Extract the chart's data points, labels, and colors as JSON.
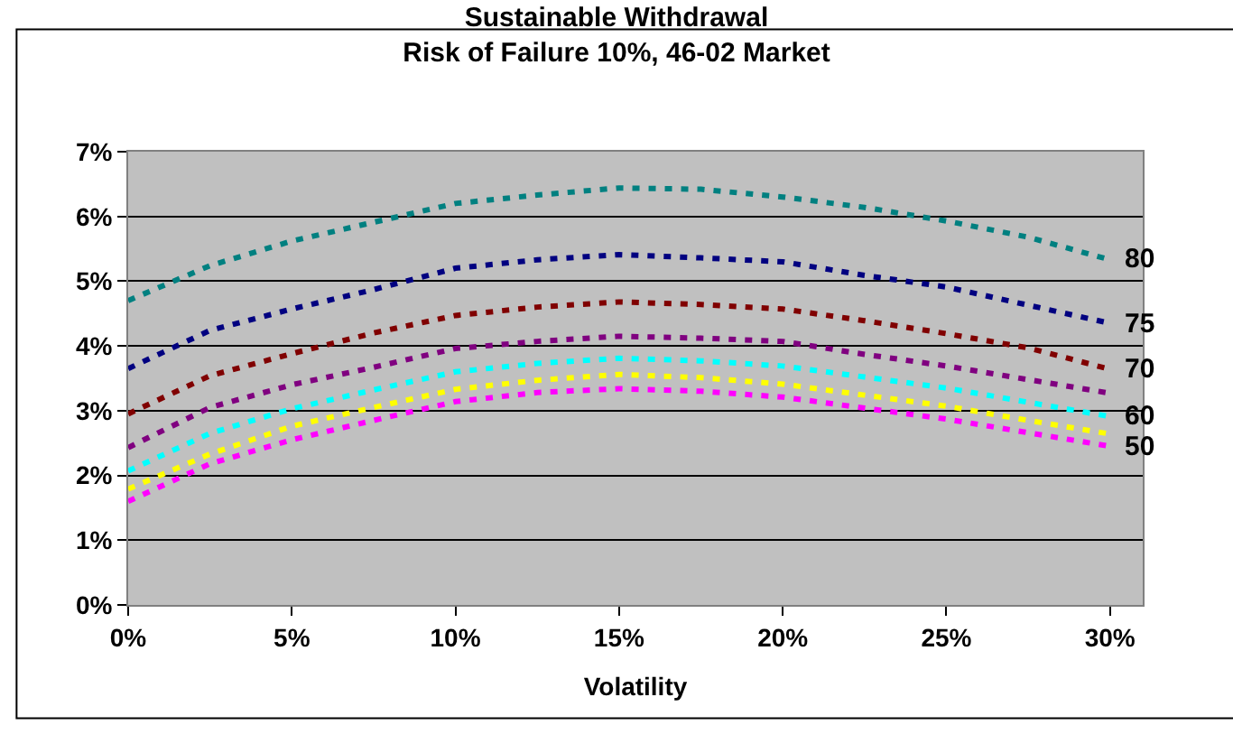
{
  "chart_data": {
    "type": "line",
    "title": "Sustainable Withdrawal\nRisk of Failure 10%, 46-02 Market",
    "xlabel": "Volatility",
    "x": [
      0,
      2.5,
      5,
      7.5,
      10,
      12.5,
      15,
      17.5,
      20,
      22.5,
      25,
      27.5,
      30
    ],
    "series": [
      {
        "name": "80",
        "color": "#008080",
        "values": [
          4.7,
          5.24,
          5.62,
          5.91,
          6.2,
          6.33,
          6.44,
          6.42,
          6.3,
          6.14,
          5.93,
          5.68,
          5.33
        ]
      },
      {
        "name": "75",
        "color": "#000080",
        "values": [
          3.65,
          4.24,
          4.57,
          4.87,
          5.2,
          5.33,
          5.41,
          5.36,
          5.3,
          5.09,
          4.91,
          4.63,
          4.35
        ]
      },
      {
        "name": "70",
        "color": "#800000",
        "values": [
          2.95,
          3.54,
          3.88,
          4.2,
          4.47,
          4.6,
          4.68,
          4.64,
          4.57,
          4.39,
          4.19,
          3.97,
          3.64
        ]
      },
      {
        "color": "#800080",
        "values": [
          2.43,
          3.05,
          3.4,
          3.67,
          3.96,
          4.07,
          4.15,
          4.12,
          4.07,
          3.87,
          3.69,
          3.48,
          3.27
        ]
      },
      {
        "name": "60",
        "color": "#00ffff",
        "values": [
          2.07,
          2.65,
          3.03,
          3.32,
          3.6,
          3.73,
          3.81,
          3.77,
          3.69,
          3.52,
          3.35,
          3.13,
          2.91
        ]
      },
      {
        "color": "#ffff00",
        "values": [
          1.79,
          2.33,
          2.76,
          3.05,
          3.33,
          3.47,
          3.56,
          3.51,
          3.41,
          3.24,
          3.07,
          2.85,
          2.64
        ]
      },
      {
        "name": "50",
        "color": "#ff00ff",
        "values": [
          1.6,
          2.18,
          2.55,
          2.85,
          3.14,
          3.28,
          3.34,
          3.3,
          3.21,
          3.04,
          2.87,
          2.66,
          2.45
        ]
      }
    ],
    "xlim": [
      0,
      31
    ],
    "xticks": [
      {
        "value": 0,
        "label": "0%"
      },
      {
        "value": 5,
        "label": "5%"
      },
      {
        "value": 10,
        "label": "10%"
      },
      {
        "value": 15,
        "label": "15%"
      },
      {
        "value": 20,
        "label": "20%"
      },
      {
        "value": 25,
        "label": "25%"
      },
      {
        "value": 30,
        "label": "30%"
      }
    ],
    "ylim": [
      0,
      7
    ],
    "yticks": [
      {
        "value": 0,
        "label": "0%"
      },
      {
        "value": 1,
        "label": "1%"
      },
      {
        "value": 2,
        "label": "2%"
      },
      {
        "value": 3,
        "label": "3%"
      },
      {
        "value": 4,
        "label": "4%"
      },
      {
        "value": 5,
        "label": "5%"
      },
      {
        "value": 6,
        "label": "6%"
      },
      {
        "value": 7,
        "label": "7%"
      }
    ],
    "grid": "y",
    "legend": false,
    "line_style": "dashed",
    "marker": "none"
  }
}
